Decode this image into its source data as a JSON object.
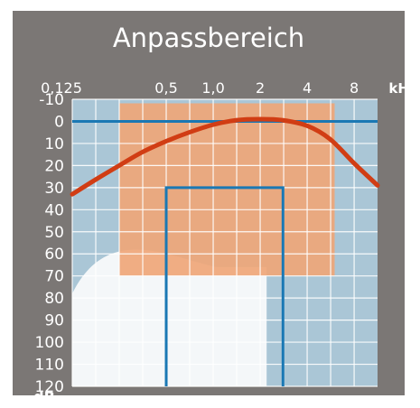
{
  "chart_data": {
    "type": "area",
    "title": "Anpassbereich",
    "x_unit": "kHz",
    "y_unit": "dB",
    "x_ticks": [
      "0,125",
      "0,5",
      "1,0",
      "2",
      "4",
      "8"
    ],
    "x_tick_values": [
      0.125,
      0.5,
      1.0,
      2,
      4,
      8
    ],
    "y_ticks": [
      -10,
      0,
      10,
      20,
      30,
      40,
      50,
      60,
      70,
      80,
      90,
      100,
      110,
      120
    ],
    "xlim": [
      0.125,
      11.3
    ],
    "ylim": [
      -10,
      120
    ],
    "y_inverted": true,
    "grid": true,
    "fitting_range": {
      "x": [
        0.25,
        6.0
      ],
      "y": [
        0,
        70
      ]
    },
    "reference_line_db": 0,
    "bracket": {
      "x": [
        0.5,
        2.8
      ],
      "top_db": 30,
      "bottom_db": 120
    },
    "curve": {
      "x": [
        0.125,
        0.18,
        0.25,
        0.35,
        0.5,
        0.7,
        1.0,
        1.4,
        2.0,
        2.8,
        4.0,
        5.6,
        8.0,
        11.3
      ],
      "y": [
        33,
        26,
        20,
        14,
        9,
        5,
        1.5,
        -0.5,
        -1,
        -0.5,
        2,
        8,
        19,
        29
      ]
    },
    "colors": {
      "frame": "#7b7775",
      "plot_background": "#aac6d6",
      "grid": "#ffffff",
      "fitting_range": "#efa678",
      "curve": "#d13d14",
      "lines": "#1a78b4",
      "text": "#ffffff"
    }
  }
}
